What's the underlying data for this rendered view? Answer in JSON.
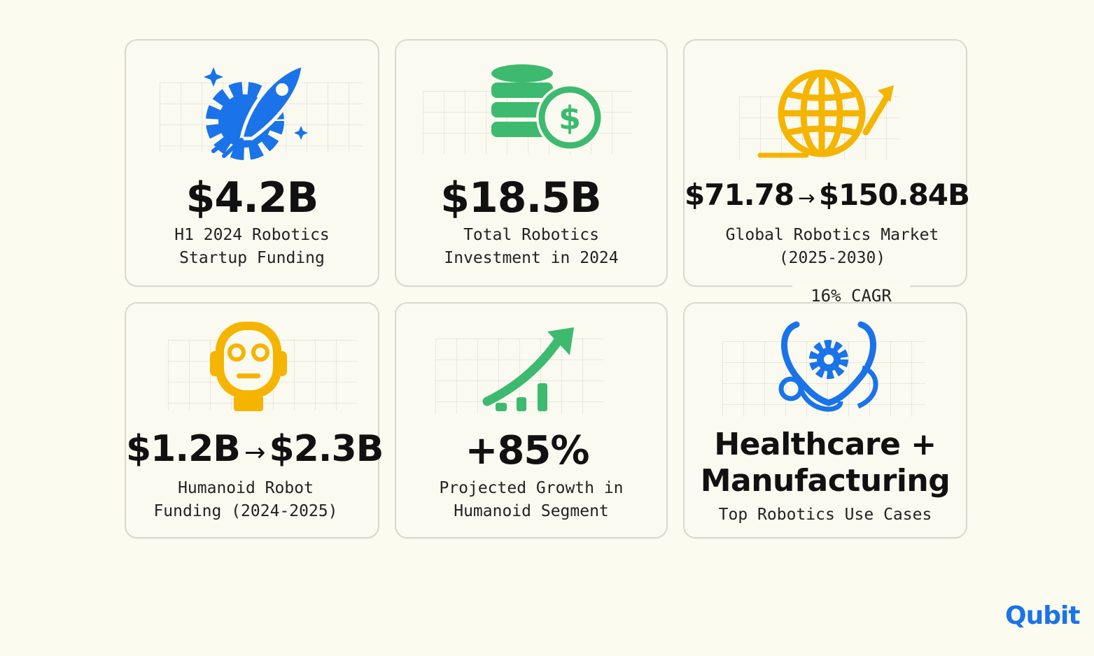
{
  "cards": [
    {
      "value": "$4.2B",
      "caption": "H1 2024 Robotics\nStartup Funding",
      "icon": "rocket-gear-icon",
      "color": "#1a73e8"
    },
    {
      "value": "$18.5B",
      "caption": "Total Robotics\nInvestment in 2024",
      "icon": "coins-dollar-icon",
      "color": "#3dba6f"
    },
    {
      "value_from": "$71.78",
      "value_to": "$150.84B",
      "caption": "Global Robotics Market\n(2025-2030)",
      "icon": "globe-growth-icon",
      "color": "#f5b400"
    },
    {
      "value_from": "$1.2B",
      "value_to": "$2.3B",
      "caption": "Humanoid Robot\nFunding (2024-2025)",
      "icon": "robot-head-icon",
      "color": "#f5b400"
    },
    {
      "value": "+85%",
      "caption": "Projected Growth in\nHumanoid Segment",
      "icon": "growth-chart-icon",
      "color": "#3dba6f"
    },
    {
      "title_line1": "Healthcare +",
      "title_line2": "Manufacturing",
      "caption": "Top Robotics Use Cases",
      "icon": "stethoscope-gear-icon",
      "color": "#1a73e8"
    }
  ],
  "badge": "16% CAGR",
  "logo": {
    "text_main": "Qubit"
  }
}
